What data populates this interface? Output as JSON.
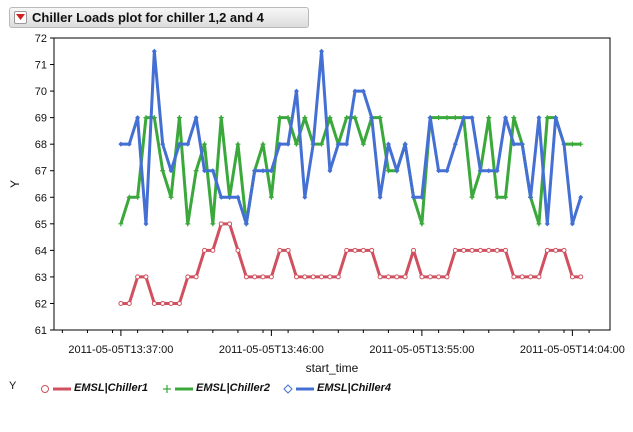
{
  "window": {
    "title": "Chiller Loads plot for chiller 1,2 and 4"
  },
  "legend": {
    "label": "Y",
    "items": [
      {
        "name": "EMSL|Chiller1",
        "color": "#d0505f",
        "marker": "circle"
      },
      {
        "name": "EMSL|Chiller2",
        "color": "#3aa83a",
        "marker": "plus"
      },
      {
        "name": "EMSL|Chiller4",
        "color": "#4470d4",
        "marker": "diamond"
      }
    ]
  },
  "chart_data": {
    "type": "line",
    "xlabel": "start_time",
    "ylabel": "Y",
    "ylim": [
      61,
      72
    ],
    "yticks": [
      61,
      62,
      63,
      64,
      65,
      66,
      67,
      68,
      69,
      70,
      71,
      72
    ],
    "xlim": [
      "2011-05-05T13:33:00",
      "2011-05-05T14:06:15"
    ],
    "xticks": [
      "2011-05-05T13:37:00",
      "2011-05-05T13:46:00",
      "2011-05-05T13:55:00",
      "2011-05-05T14:04:00"
    ],
    "grid": false,
    "legend_position": "bottom",
    "x": [
      "13:37:00",
      "13:37:30",
      "13:38:00",
      "13:38:30",
      "13:39:00",
      "13:39:30",
      "13:40:00",
      "13:40:30",
      "13:41:00",
      "13:41:30",
      "13:42:00",
      "13:42:30",
      "13:43:00",
      "13:43:30",
      "13:44:00",
      "13:44:30",
      "13:45:00",
      "13:45:30",
      "13:46:00",
      "13:46:30",
      "13:47:00",
      "13:47:30",
      "13:48:00",
      "13:48:30",
      "13:49:00",
      "13:49:30",
      "13:50:00",
      "13:50:30",
      "13:51:00",
      "13:51:30",
      "13:52:00",
      "13:52:30",
      "13:53:00",
      "13:53:30",
      "13:54:00",
      "13:54:30",
      "13:55:00",
      "13:55:30",
      "13:56:00",
      "13:56:30",
      "13:57:00",
      "13:57:30",
      "13:58:00",
      "13:58:30",
      "13:59:00",
      "13:59:30",
      "14:00:00",
      "14:00:30",
      "14:01:00",
      "14:01:30",
      "14:02:00",
      "14:02:30",
      "14:03:00",
      "14:03:30",
      "14:04:00",
      "14:04:30",
      "14:05:00"
    ],
    "series": [
      {
        "name": "EMSL|Chiller1",
        "values": [
          62,
          62,
          63,
          63,
          62,
          62,
          62,
          62,
          63,
          63,
          64,
          64,
          65,
          65,
          64,
          63,
          63,
          63,
          63,
          64,
          64,
          63,
          63,
          63,
          63,
          63,
          63,
          64,
          64,
          64,
          64,
          63,
          63,
          63,
          63,
          64,
          63,
          63,
          63,
          63,
          64,
          64,
          64,
          64,
          64,
          64,
          64,
          63,
          63,
          63,
          63,
          64,
          64,
          64,
          63,
          63,
          null
        ]
      },
      {
        "name": "EMSL|Chiller2",
        "values": [
          65,
          66,
          66,
          69,
          69,
          67,
          66,
          69,
          65,
          67,
          68,
          65,
          69,
          66,
          68,
          65,
          67,
          68,
          66,
          69,
          69,
          68,
          69,
          68,
          68,
          69,
          68,
          69,
          69,
          68,
          69,
          69,
          67,
          67,
          68,
          66,
          65,
          69,
          69,
          69,
          69,
          69,
          66,
          67,
          69,
          66,
          66,
          69,
          68,
          66,
          65,
          69,
          69,
          68,
          68,
          68,
          null
        ]
      },
      {
        "name": "EMSL|Chiller4",
        "values": [
          68,
          68,
          69,
          65,
          71.5,
          68,
          67,
          68,
          68,
          69,
          67,
          67,
          66,
          66,
          66,
          65,
          67,
          67,
          67,
          68,
          68,
          70,
          66,
          68,
          71.5,
          67,
          68,
          68,
          70,
          70,
          69,
          66,
          68,
          67,
          68,
          66,
          66,
          69,
          67,
          67,
          68,
          69,
          69,
          67,
          67,
          67,
          69,
          68,
          68,
          66,
          69,
          65,
          69,
          68,
          65,
          66,
          null
        ]
      }
    ]
  }
}
